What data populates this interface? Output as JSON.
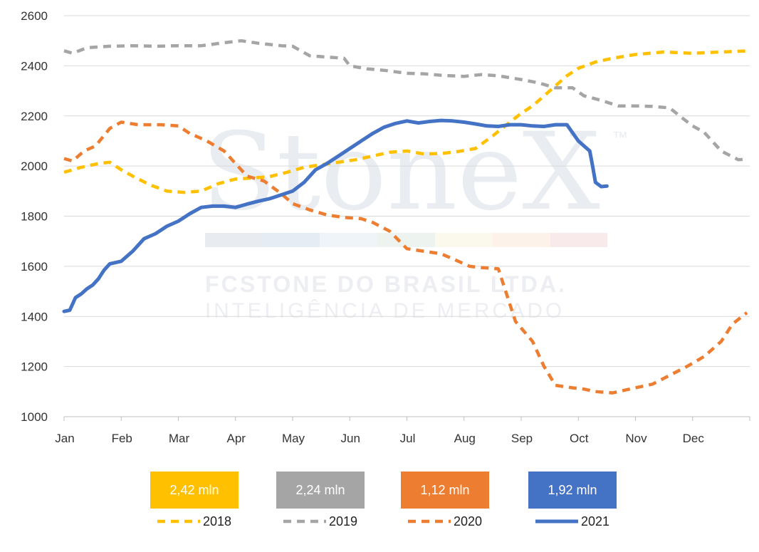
{
  "watermark": {
    "brand": "StoneX",
    "tm": "™",
    "line1": "FCSTONE DO BRASIL LTDA.",
    "line2": "INTELIGÊNCIA DE MERCADO"
  },
  "chart_data": {
    "type": "line",
    "title": "",
    "xlabel": "",
    "ylabel": "",
    "ylim": [
      1000,
      2600
    ],
    "yticks": [
      1000,
      1200,
      1400,
      1600,
      1800,
      2000,
      2200,
      2400,
      2600
    ],
    "xlim": [
      0,
      12
    ],
    "categories": [
      "Jan",
      "Feb",
      "Mar",
      "Apr",
      "May",
      "Jun",
      "Jul",
      "Aug",
      "Sep",
      "Oct",
      "Nov",
      "Dec"
    ],
    "grid": "horizontal",
    "legend_position": "bottom",
    "series": [
      {
        "name": "2018",
        "badge": "2,42 mln",
        "color": "#FFC000",
        "style": "dashed",
        "x": [
          0.0,
          0.3,
          0.6,
          0.8,
          1.0,
          1.2,
          1.5,
          1.8,
          2.1,
          2.4,
          2.7,
          3.0,
          3.3,
          3.6,
          3.9,
          4.2,
          4.5,
          4.8,
          5.1,
          5.4,
          5.7,
          6.0,
          6.3,
          6.6,
          6.9,
          7.2,
          7.5,
          7.8,
          8.0,
          8.2,
          8.4,
          8.6,
          8.8,
          9.0,
          9.3,
          9.6,
          10.0,
          10.5,
          11.0,
          11.5,
          12.0
        ],
        "values": [
          1975,
          1995,
          2010,
          2015,
          1985,
          1960,
          1925,
          1900,
          1895,
          1900,
          1930,
          1948,
          1952,
          1958,
          1975,
          1995,
          2005,
          2015,
          2025,
          2040,
          2055,
          2060,
          2048,
          2050,
          2058,
          2070,
          2120,
          2175,
          2210,
          2240,
          2280,
          2320,
          2360,
          2390,
          2415,
          2430,
          2445,
          2455,
          2450,
          2455,
          2460
        ]
      },
      {
        "name": "2019",
        "badge": "2,24 mln",
        "color": "#A5A5A5",
        "style": "dashed",
        "x": [
          0.0,
          0.15,
          0.4,
          0.8,
          1.2,
          1.6,
          2.0,
          2.4,
          2.8,
          3.1,
          3.4,
          3.8,
          4.0,
          4.3,
          4.6,
          4.9,
          5.0,
          5.3,
          5.6,
          6.0,
          6.3,
          6.6,
          7.0,
          7.3,
          7.6,
          8.0,
          8.3,
          8.6,
          8.9,
          9.1,
          9.4,
          9.7,
          10.0,
          10.3,
          10.6,
          10.8,
          11.0,
          11.2,
          11.5,
          11.8,
          11.95
        ],
        "values": [
          2460,
          2450,
          2472,
          2478,
          2480,
          2478,
          2480,
          2480,
          2492,
          2500,
          2490,
          2480,
          2478,
          2440,
          2435,
          2430,
          2400,
          2388,
          2382,
          2370,
          2368,
          2362,
          2358,
          2365,
          2360,
          2345,
          2332,
          2312,
          2312,
          2280,
          2262,
          2240,
          2240,
          2238,
          2232,
          2195,
          2160,
          2135,
          2060,
          2025,
          2028
        ]
      },
      {
        "name": "2020",
        "badge": "1,12 mln",
        "color": "#ED7D31",
        "style": "dashed",
        "x": [
          0.0,
          0.15,
          0.35,
          0.55,
          0.8,
          1.0,
          1.3,
          1.7,
          2.0,
          2.2,
          2.5,
          2.8,
          3.0,
          3.2,
          3.5,
          3.8,
          4.0,
          4.3,
          4.6,
          4.9,
          5.2,
          5.4,
          5.7,
          6.0,
          6.3,
          6.6,
          6.9,
          7.1,
          7.3,
          7.6,
          7.9,
          8.2,
          8.4,
          8.6,
          8.9,
          9.1,
          9.3,
          9.6,
          10.0,
          10.3,
          10.6,
          10.9,
          11.2,
          11.5,
          11.7,
          11.95
        ],
        "values": [
          2030,
          2020,
          2060,
          2080,
          2150,
          2175,
          2165,
          2165,
          2160,
          2130,
          2100,
          2060,
          2010,
          1960,
          1940,
          1890,
          1850,
          1825,
          1805,
          1795,
          1790,
          1775,
          1740,
          1670,
          1660,
          1650,
          1620,
          1600,
          1595,
          1590,
          1380,
          1300,
          1200,
          1125,
          1115,
          1110,
          1100,
          1095,
          1115,
          1130,
          1165,
          1200,
          1240,
          1300,
          1370,
          1415
        ]
      },
      {
        "name": "2021",
        "badge": "1,92 mln",
        "color": "#4472C4",
        "style": "solid",
        "x": [
          0.0,
          0.1,
          0.2,
          0.3,
          0.4,
          0.5,
          0.6,
          0.7,
          0.8,
          1.0,
          1.2,
          1.4,
          1.6,
          1.8,
          2.0,
          2.2,
          2.4,
          2.6,
          2.8,
          3.0,
          3.2,
          3.4,
          3.6,
          3.8,
          4.0,
          4.2,
          4.4,
          4.6,
          4.8,
          5.0,
          5.2,
          5.4,
          5.6,
          5.8,
          6.0,
          6.2,
          6.4,
          6.6,
          6.8,
          7.0,
          7.2,
          7.4,
          7.6,
          7.8,
          8.0,
          8.2,
          8.4,
          8.6,
          8.8,
          9.0,
          9.1,
          9.2,
          9.25,
          9.3,
          9.4,
          9.5
        ],
        "values": [
          1420,
          1425,
          1475,
          1490,
          1510,
          1525,
          1550,
          1585,
          1610,
          1620,
          1660,
          1710,
          1730,
          1760,
          1780,
          1810,
          1835,
          1840,
          1840,
          1835,
          1848,
          1860,
          1870,
          1885,
          1900,
          1935,
          1985,
          2010,
          2040,
          2070,
          2100,
          2130,
          2155,
          2170,
          2180,
          2172,
          2178,
          2182,
          2180,
          2175,
          2168,
          2160,
          2158,
          2165,
          2165,
          2160,
          2158,
          2165,
          2165,
          2100,
          2080,
          2060,
          2000,
          1935,
          1918,
          1920
        ]
      }
    ]
  }
}
